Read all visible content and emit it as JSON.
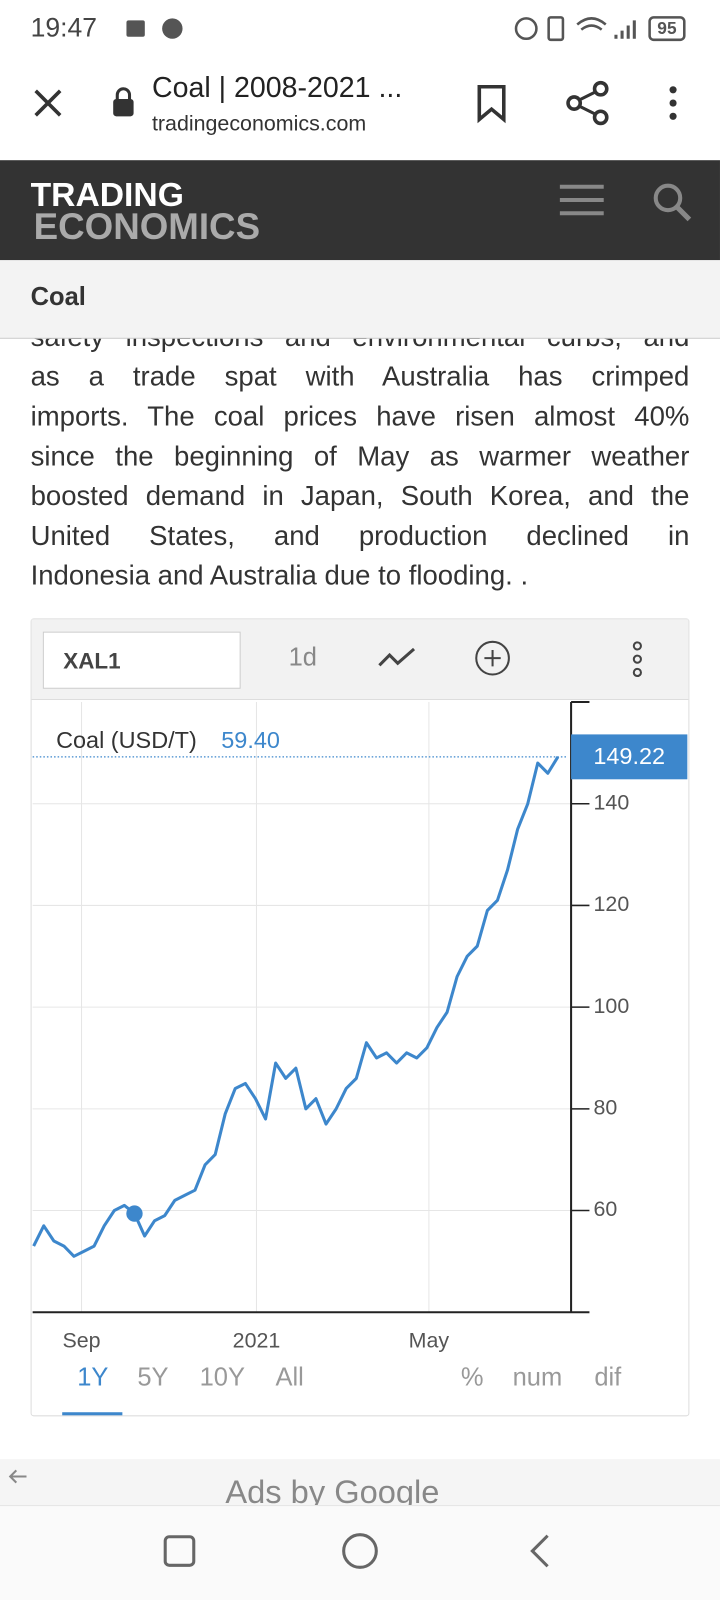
{
  "status_bar": {
    "time": "19:47",
    "battery": "95"
  },
  "browser": {
    "title": "Coal | 2008-2021 ...",
    "url": "tradingeconomics.com"
  },
  "site": {
    "logo_line1": "TRADING",
    "logo_line2": "ECONOMICS"
  },
  "section_title": "Coal",
  "article": {
    "lines": [
      "safety inspections and environmental curbs, and",
      "as a trade spat with Australia has crimped",
      "imports. The coal prices have risen almost 40%",
      "since the beginning of May as warmer weather",
      "boosted demand in Japan, South Korea, and the",
      "United States, and production declined in",
      "Indonesia and Australia due to flooding. ."
    ]
  },
  "chart_toolbar": {
    "symbol": "XAL1",
    "interval": "1d"
  },
  "chart_data": {
    "type": "line",
    "legend_value": "59.40",
    "series": [
      {
        "name": "Coal (USD/T)",
        "color": "#3d87cc",
        "values": [
          53,
          57,
          54,
          53,
          51,
          52,
          53,
          57,
          60,
          61,
          59.4,
          55,
          58,
          59,
          62,
          63,
          64,
          69,
          71,
          79,
          84,
          85,
          82,
          78,
          89,
          86,
          88,
          80,
          82,
          77,
          80,
          84,
          86,
          93,
          90,
          91,
          89,
          91,
          90,
          92,
          96,
          99,
          106,
          110,
          112,
          119,
          121,
          127,
          135,
          140,
          148,
          146,
          149.22
        ]
      }
    ],
    "xlim": [
      0,
      53
    ],
    "xticks": [
      {
        "value": 4.75,
        "label": "Sep"
      },
      {
        "value": 22.1,
        "label": "2021"
      },
      {
        "value": 39.2,
        "label": "May"
      }
    ],
    "ylim": [
      40,
      160
    ],
    "yticks": [
      60,
      80,
      100,
      120,
      140
    ],
    "grid": true
  },
  "range_buttons": [
    "1Y",
    "5Y",
    "10Y",
    "All"
  ],
  "mode_buttons": [
    "%",
    "num",
    "dif"
  ],
  "ads": "Ads by Google"
}
